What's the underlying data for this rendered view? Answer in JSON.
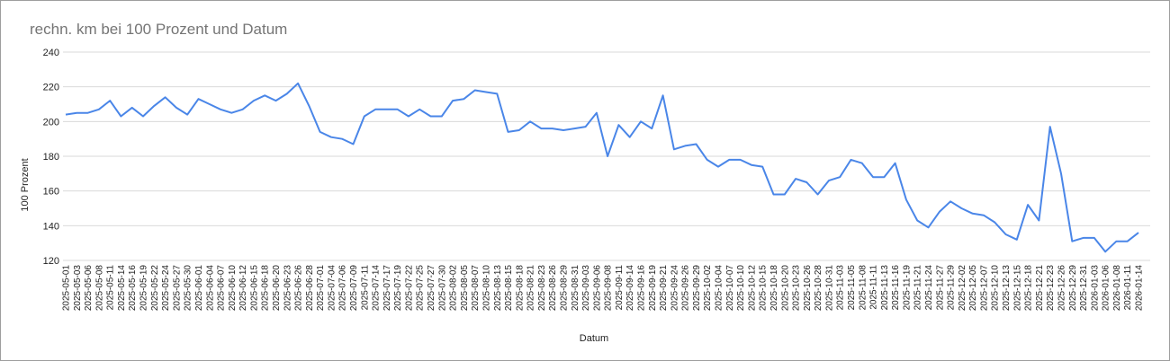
{
  "chart_data": {
    "type": "line",
    "title": "rechn. km bei 100 Prozent und Datum",
    "x_label": "Datum",
    "y_label": "100 Prozent",
    "categories": [
      "2025-05-01",
      "2025-05-03",
      "2025-05-06",
      "2025-05-08",
      "2025-05-11",
      "2025-05-14",
      "2025-05-16",
      "2025-05-19",
      "2025-05-22",
      "2025-05-24",
      "2025-05-27",
      "2025-05-30",
      "2025-06-01",
      "2025-06-04",
      "2025-06-07",
      "2025-06-10",
      "2025-06-12",
      "2025-06-15",
      "2025-06-18",
      "2025-06-20",
      "2025-06-23",
      "2025-06-26",
      "2025-06-28",
      "2025-07-01",
      "2025-07-04",
      "2025-07-06",
      "2025-07-09",
      "2025-07-11",
      "2025-07-14",
      "2025-07-17",
      "2025-07-19",
      "2025-07-22",
      "2025-07-25",
      "2025-07-27",
      "2025-07-30",
      "2025-08-02",
      "2025-08-05",
      "2025-08-07",
      "2025-08-10",
      "2025-08-13",
      "2025-08-15",
      "2025-08-18",
      "2025-08-21",
      "2025-08-23",
      "2025-08-26",
      "2025-08-29",
      "2025-08-31",
      "2025-09-03",
      "2025-09-06",
      "2025-09-08",
      "2025-09-11",
      "2025-09-14",
      "2025-09-16",
      "2025-09-19",
      "2025-09-21",
      "2025-09-24",
      "2025-09-26",
      "2025-09-29",
      "2025-10-02",
      "2025-10-04",
      "2025-10-07",
      "2025-10-10",
      "2025-10-12",
      "2025-10-15",
      "2025-10-18",
      "2025-10-20",
      "2025-10-23",
      "2025-10-26",
      "2025-10-28",
      "2025-10-31",
      "2025-11-03",
      "2025-11-05",
      "2025-11-08",
      "2025-11-11",
      "2025-11-13",
      "2025-11-16",
      "2025-11-19",
      "2025-11-21",
      "2025-11-24",
      "2025-11-27",
      "2025-11-29",
      "2025-12-02",
      "2025-12-05",
      "2025-12-07",
      "2025-12-10",
      "2025-12-13",
      "2025-12-15",
      "2025-12-18",
      "2025-12-21",
      "2025-12-23",
      "2025-12-26",
      "2025-12-29",
      "2025-12-31",
      "2026-01-03",
      "2026-01-06",
      "2026-01-08",
      "2026-01-11",
      "2026-01-14"
    ],
    "series": [
      {
        "name": "100 Prozent",
        "color": "#4a86e8",
        "values": [
          204,
          205,
          205,
          207,
          212,
          203,
          208,
          203,
          209,
          214,
          208,
          204,
          213,
          210,
          207,
          205,
          207,
          212,
          215,
          212,
          216,
          222,
          209,
          194,
          191,
          190,
          187,
          203,
          207,
          207,
          207,
          203,
          207,
          203,
          203,
          212,
          213,
          218,
          217,
          216,
          194,
          195,
          200,
          196,
          196,
          195,
          196,
          197,
          205,
          180,
          198,
          191,
          200,
          196,
          215,
          184,
          186,
          187,
          178,
          174,
          178,
          178,
          175,
          174,
          158,
          158,
          167,
          165,
          158,
          166,
          168,
          178,
          176,
          168,
          168,
          176,
          155,
          143,
          139,
          148,
          154,
          150,
          147,
          146,
          142,
          135,
          132,
          152,
          143,
          197,
          170,
          131,
          133,
          133,
          125,
          131,
          131,
          136
        ]
      }
    ],
    "ylim": [
      120,
      240
    ],
    "yticks": [
      120,
      140,
      160,
      180,
      200,
      220,
      240
    ],
    "grid": true
  }
}
